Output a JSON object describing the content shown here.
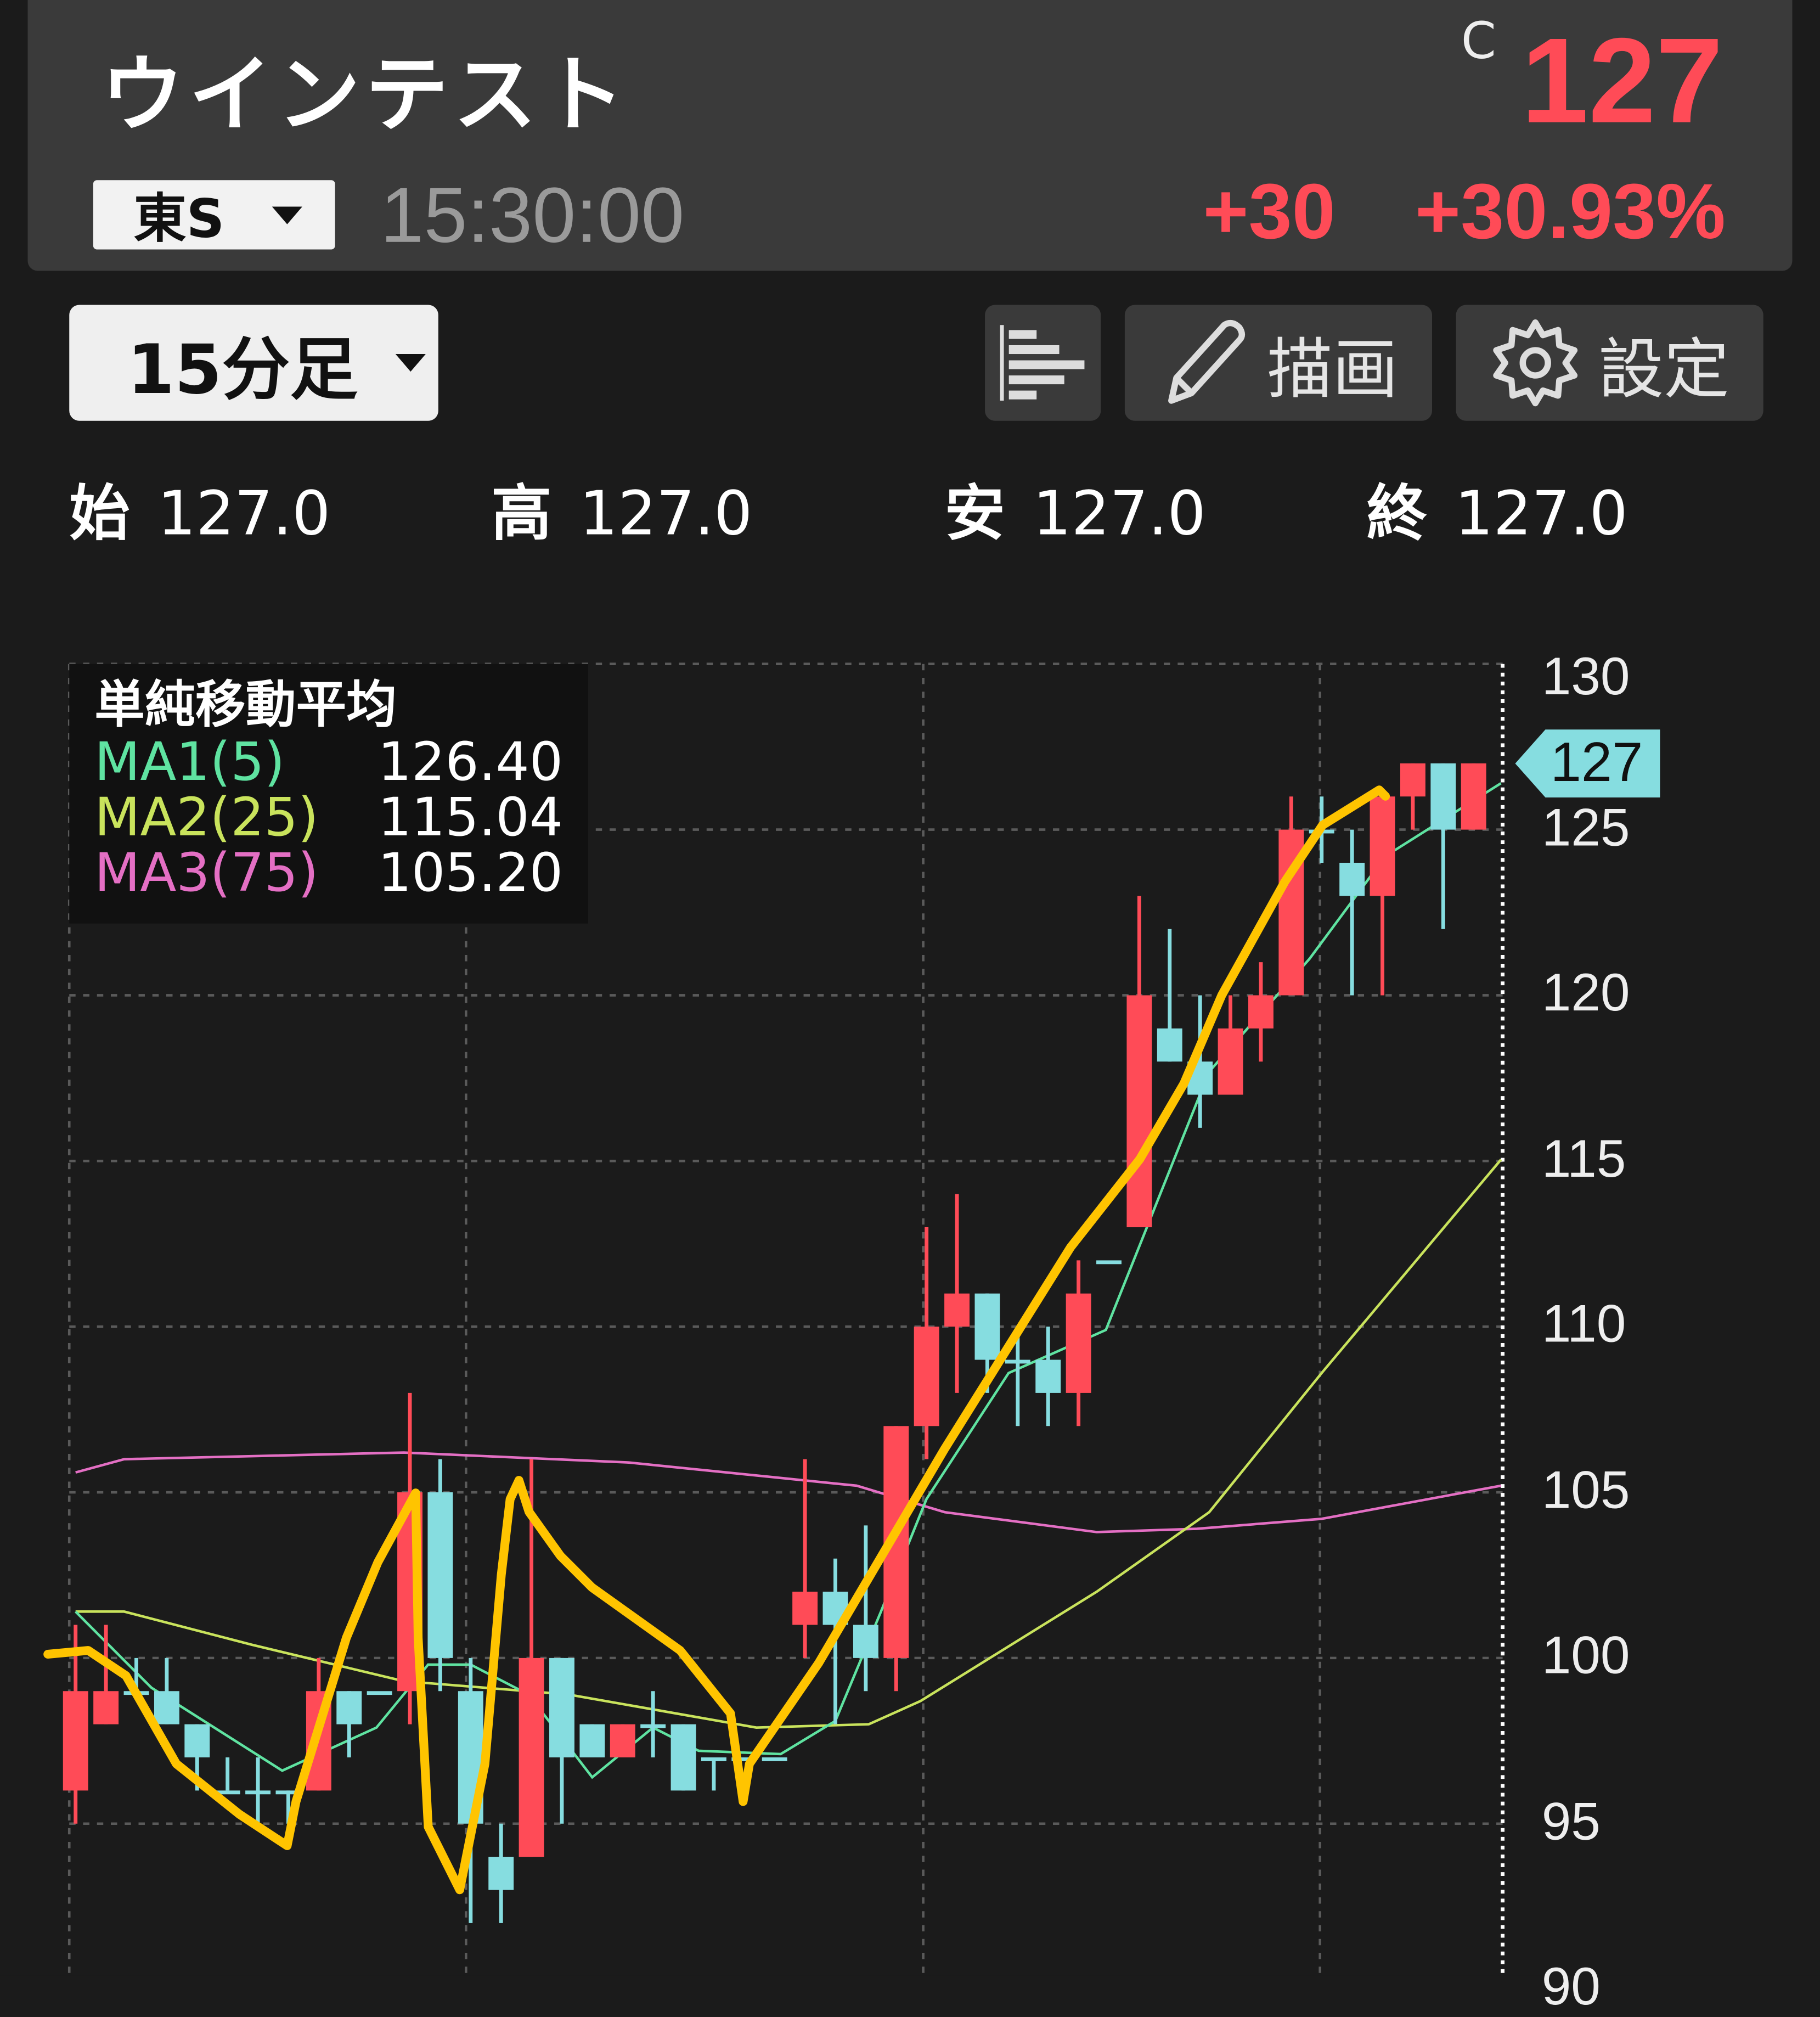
{
  "header": {
    "title": "ウインテスト",
    "price_label": "C",
    "price": "127",
    "market": "東S",
    "time": "15:30:00",
    "change": "+30",
    "change_pct": "+30.93%"
  },
  "toolbar": {
    "timeframe": "15分足",
    "draw_label": "描画",
    "settings_label": "設定",
    "icons": {
      "list": "list-icon",
      "draw": "pencil-icon",
      "settings": "gear-icon"
    }
  },
  "ohlc": [
    {
      "k": "始",
      "v": "127.0"
    },
    {
      "k": "高",
      "v": "127.0"
    },
    {
      "k": "安",
      "v": "127.0"
    },
    {
      "k": "終",
      "v": "127.0"
    }
  ],
  "legend": {
    "title": "単純移動平均",
    "items": [
      {
        "label": "MA1(5)",
        "value": "126.40",
        "color": "#5fe3a1"
      },
      {
        "label": "MA2(25)",
        "value": "115.04",
        "color": "#c9e35c"
      },
      {
        "label": "MA3(75)",
        "value": "105.20",
        "color": "#e46fc4"
      }
    ]
  },
  "colors": {
    "up": "#ff4b57",
    "down": "#86dde0",
    "draw": "#ffc400",
    "header_bg": "#3a3a3a",
    "bg": "#1b1b1b"
  },
  "chart_data": {
    "type": "candlestick",
    "ylim": [
      90,
      130
    ],
    "yticks": [
      "130",
      "125",
      "120",
      "115",
      "110",
      "105",
      "100",
      "95",
      "90"
    ],
    "current_price_tag": "127",
    "grid": true,
    "ohlc": [
      [
        96,
        101,
        95,
        99
      ],
      [
        98,
        101,
        98,
        99
      ],
      [
        99,
        100,
        99,
        99
      ],
      [
        99,
        100,
        98,
        98
      ],
      [
        98,
        98,
        96,
        97
      ],
      [
        96,
        97,
        96,
        96
      ],
      [
        96,
        97,
        95,
        96
      ],
      [
        96,
        96,
        95,
        96
      ],
      [
        96,
        100,
        96,
        99
      ],
      [
        99,
        99,
        97,
        98
      ],
      [
        99,
        99,
        99,
        99
      ],
      [
        99,
        108,
        98,
        105
      ],
      [
        105,
        106,
        99,
        100
      ],
      [
        99,
        100,
        92,
        95
      ],
      [
        94,
        95,
        92,
        93
      ],
      [
        94,
        106,
        94,
        100
      ],
      [
        100,
        100,
        95,
        97
      ],
      [
        98,
        98,
        97,
        97
      ],
      [
        97,
        98,
        97,
        98
      ],
      [
        98,
        99,
        97,
        98
      ],
      [
        98,
        98,
        96,
        96
      ],
      [
        97,
        97,
        96,
        97
      ],
      [
        97,
        97,
        97,
        97
      ],
      [
        97,
        97,
        97,
        97
      ],
      [
        101,
        106,
        100,
        102
      ],
      [
        102,
        103,
        98,
        101
      ],
      [
        101,
        104,
        99,
        100
      ],
      [
        100,
        107,
        99,
        107
      ],
      [
        107,
        113,
        106,
        110
      ],
      [
        110,
        114,
        108,
        111
      ],
      [
        111,
        111,
        108,
        109
      ],
      [
        109,
        110,
        107,
        109
      ],
      [
        109,
        110,
        107,
        108
      ],
      [
        108,
        112,
        107,
        111
      ],
      [
        112,
        112,
        112,
        112
      ],
      [
        113,
        123,
        113,
        120
      ],
      [
        119,
        122,
        118,
        118
      ],
      [
        118,
        120,
        116,
        117
      ],
      [
        117,
        120,
        117,
        119
      ],
      [
        119,
        121,
        118,
        120
      ],
      [
        120,
        126,
        120,
        125
      ],
      [
        125,
        126,
        124,
        125
      ],
      [
        124,
        125,
        120,
        123
      ],
      [
        123,
        126,
        120,
        126
      ],
      [
        126,
        127,
        125,
        127
      ],
      [
        127,
        127,
        122,
        125
      ],
      [
        125,
        127,
        125,
        127
      ]
    ],
    "series": [
      {
        "name": "MA1(5)",
        "points": [
          [
            0,
            101.4
          ],
          [
            2.5,
            99.1
          ],
          [
            6.8,
            96.6
          ],
          [
            9.9,
            97.9
          ],
          [
            11.6,
            99.8
          ],
          [
            13,
            99.8
          ],
          [
            14.9,
            98.9
          ],
          [
            17,
            96.4
          ],
          [
            19,
            97.9
          ],
          [
            20.5,
            97.2
          ],
          [
            23.2,
            97.1
          ],
          [
            25,
            98.1
          ],
          [
            26.5,
            101.4
          ],
          [
            28,
            104.8
          ],
          [
            30.7,
            108.6
          ],
          [
            33.9,
            109.9
          ],
          [
            37.3,
            117.7
          ],
          [
            40.6,
            121.1
          ],
          [
            43.1,
            124.2
          ],
          [
            46.9,
            126.4
          ]
        ]
      },
      {
        "name": "MA2(25)",
        "points": [
          [
            0,
            101.4
          ],
          [
            1.6,
            101.4
          ],
          [
            5.8,
            100.4
          ],
          [
            10.8,
            99.3
          ],
          [
            16.2,
            98.9
          ],
          [
            22.4,
            97.9
          ],
          [
            26.1,
            98.0
          ],
          [
            27.8,
            98.7
          ],
          [
            33.6,
            102
          ],
          [
            37.3,
            104.4
          ],
          [
            41,
            108.6
          ],
          [
            46.9,
            115.04
          ]
        ]
      },
      {
        "name": "MA3(75)",
        "points": [
          [
            0,
            105.6
          ],
          [
            1.6,
            106.0
          ],
          [
            10.8,
            106.2
          ],
          [
            18.2,
            105.9
          ],
          [
            25.7,
            105.2
          ],
          [
            28.6,
            104.4
          ],
          [
            33.6,
            103.8
          ],
          [
            36.9,
            103.9
          ],
          [
            41,
            104.2
          ],
          [
            46.9,
            105.2
          ]
        ]
      }
    ]
  }
}
